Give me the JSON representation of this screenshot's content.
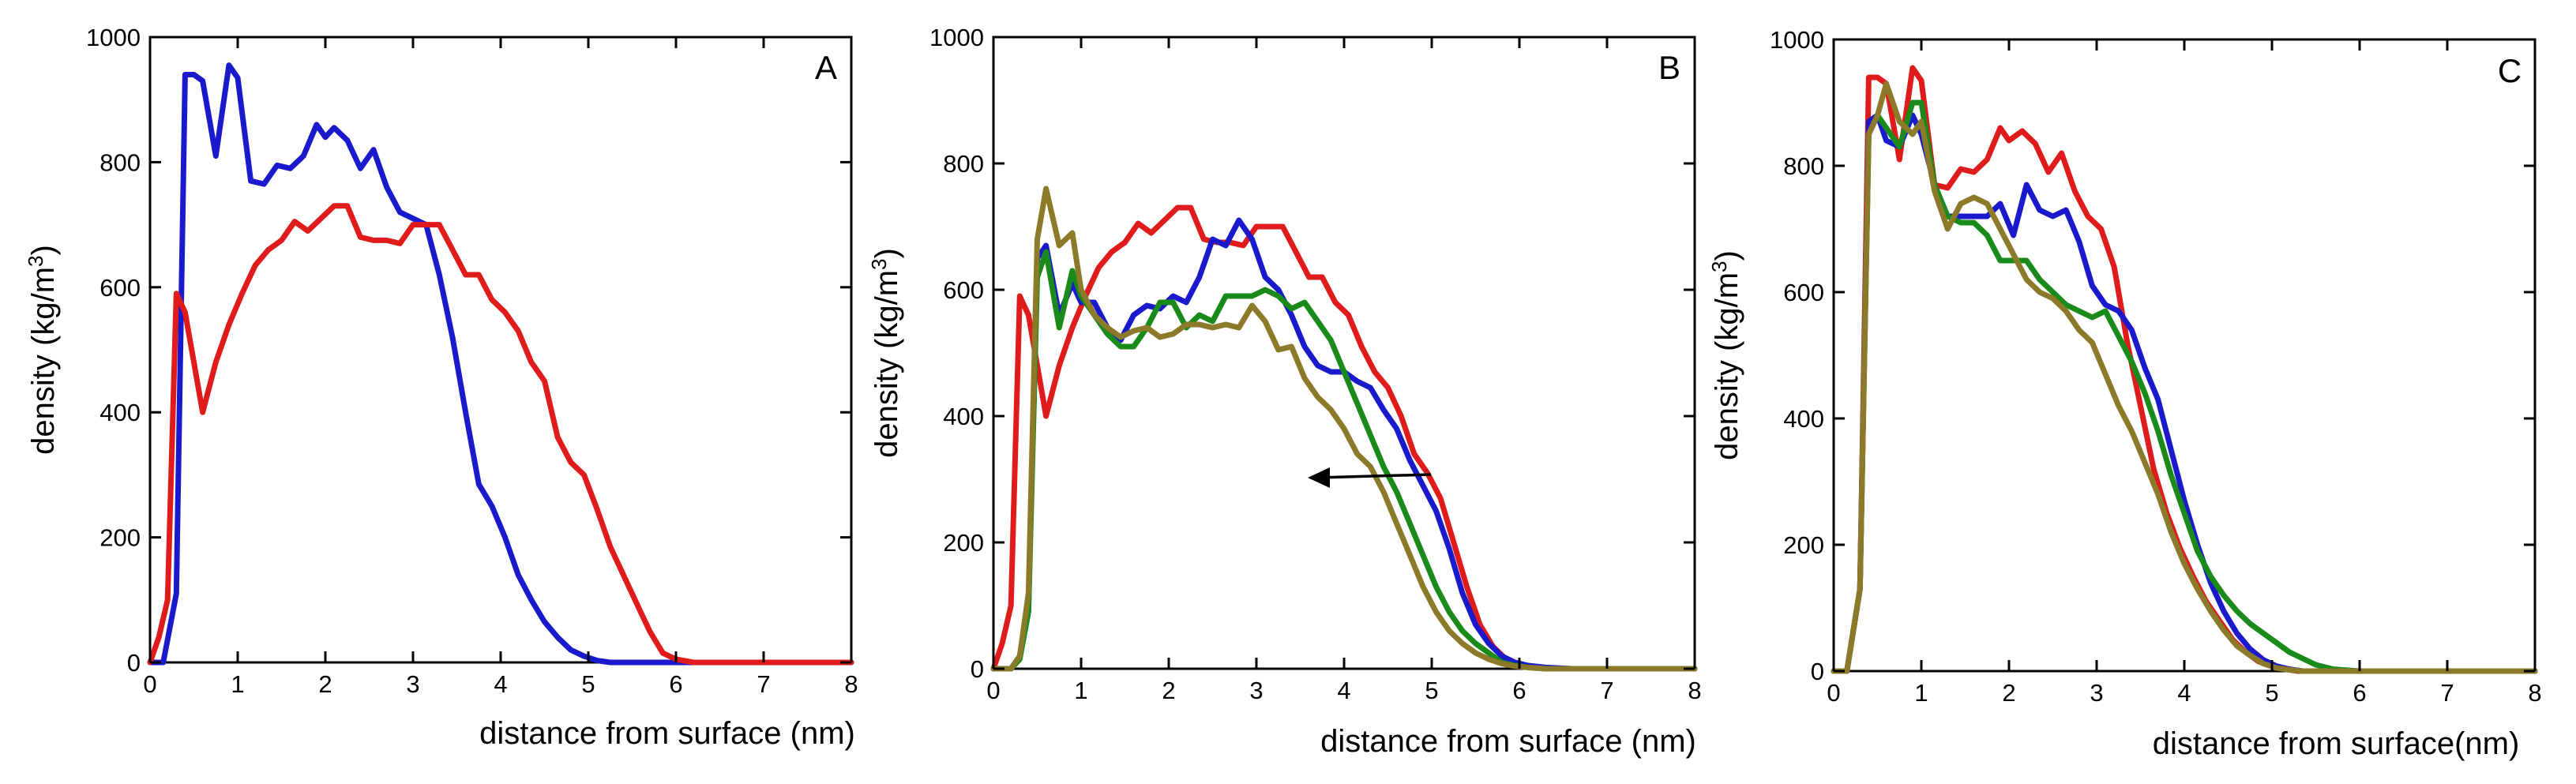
{
  "figure_title": "",
  "chart_data": [
    {
      "type": "line",
      "panel_label": "A",
      "title": "",
      "xlabel": "distance from surface (nm)",
      "ylabel_main": "density (kg/m",
      "ylabel_sup": "3",
      "ylabel_close": ")",
      "xlim": [
        0,
        8
      ],
      "ylim": [
        0,
        1000
      ],
      "xticks": [
        "0",
        "1",
        "2",
        "3",
        "4",
        "5",
        "6",
        "7",
        "8"
      ],
      "yticks": [
        "0",
        "200",
        "400",
        "600",
        "800",
        "1000"
      ],
      "grid": false,
      "series": [
        {
          "name": "blue",
          "color": "#1a1acc",
          "x": [
            0,
            0.15,
            0.3,
            0.4,
            0.5,
            0.6,
            0.75,
            0.9,
            1.0,
            1.15,
            1.3,
            1.45,
            1.6,
            1.75,
            1.9,
            2.0,
            2.1,
            2.25,
            2.4,
            2.55,
            2.7,
            2.85,
            3.0,
            3.15,
            3.3,
            3.45,
            3.6,
            3.75,
            3.9,
            4.05,
            4.2,
            4.35,
            4.5,
            4.65,
            4.8,
            4.95,
            5.1,
            5.25,
            5.4,
            5.6,
            6.0,
            7.0,
            8.0
          ],
          "y": [
            0,
            0,
            110,
            940,
            940,
            930,
            810,
            955,
            935,
            770,
            765,
            795,
            790,
            810,
            860,
            840,
            855,
            835,
            790,
            820,
            760,
            720,
            710,
            700,
            620,
            520,
            400,
            285,
            250,
            200,
            140,
            100,
            65,
            40,
            20,
            10,
            3,
            0,
            0,
            0,
            0,
            0,
            0
          ]
        },
        {
          "name": "red",
          "color": "#e01b1b",
          "x": [
            0,
            0.1,
            0.2,
            0.3,
            0.4,
            0.5,
            0.6,
            0.75,
            0.9,
            1.05,
            1.2,
            1.35,
            1.5,
            1.65,
            1.8,
            1.95,
            2.1,
            2.25,
            2.4,
            2.55,
            2.7,
            2.85,
            3.0,
            3.15,
            3.3,
            3.45,
            3.6,
            3.75,
            3.9,
            4.05,
            4.2,
            4.35,
            4.5,
            4.65,
            4.8,
            4.95,
            5.1,
            5.25,
            5.4,
            5.55,
            5.7,
            5.85,
            6.0,
            6.2,
            6.5,
            7.0,
            8.0
          ],
          "y": [
            0,
            40,
            100,
            590,
            560,
            480,
            400,
            480,
            540,
            590,
            635,
            660,
            675,
            705,
            690,
            710,
            730,
            730,
            680,
            675,
            675,
            670,
            700,
            700,
            700,
            660,
            620,
            620,
            580,
            560,
            530,
            480,
            450,
            360,
            320,
            300,
            245,
            185,
            140,
            95,
            50,
            15,
            5,
            0,
            0,
            0,
            0
          ]
        }
      ]
    },
    {
      "type": "line",
      "panel_label": "B",
      "title": "",
      "xlabel": "distance from surface (nm)",
      "ylabel_main": "density (kg/m",
      "ylabel_sup": "3",
      "ylabel_close": ")",
      "xlim": [
        0,
        8
      ],
      "ylim": [
        0,
        1000
      ],
      "xticks": [
        "0",
        "1",
        "2",
        "3",
        "4",
        "5",
        "6",
        "7",
        "8"
      ],
      "yticks": [
        "0",
        "200",
        "400",
        "600",
        "800",
        "1000"
      ],
      "grid": false,
      "annotation": "left-pointing arrow near (4.6, 300)",
      "series": [
        {
          "name": "red",
          "color": "#e01b1b",
          "x": [
            0,
            0.1,
            0.2,
            0.3,
            0.4,
            0.5,
            0.6,
            0.75,
            0.9,
            1.05,
            1.2,
            1.35,
            1.5,
            1.65,
            1.8,
            1.95,
            2.1,
            2.25,
            2.4,
            2.55,
            2.7,
            2.85,
            3.0,
            3.15,
            3.3,
            3.45,
            3.6,
            3.75,
            3.9,
            4.05,
            4.2,
            4.35,
            4.5,
            4.65,
            4.8,
            4.95,
            5.1,
            5.25,
            5.4,
            5.55,
            5.7,
            5.85,
            6.0,
            6.2,
            6.5,
            7.0,
            8.0
          ],
          "y": [
            0,
            40,
            100,
            590,
            560,
            480,
            400,
            480,
            540,
            590,
            635,
            660,
            675,
            705,
            690,
            710,
            730,
            730,
            680,
            675,
            675,
            670,
            700,
            700,
            700,
            660,
            620,
            620,
            580,
            560,
            510,
            470,
            445,
            400,
            340,
            310,
            270,
            200,
            130,
            70,
            35,
            15,
            5,
            2,
            0,
            0,
            0
          ]
        },
        {
          "name": "blue",
          "color": "#1a1acc",
          "x": [
            0,
            0.2,
            0.3,
            0.4,
            0.5,
            0.6,
            0.75,
            0.9,
            1.0,
            1.15,
            1.3,
            1.45,
            1.6,
            1.75,
            1.9,
            2.05,
            2.2,
            2.35,
            2.5,
            2.65,
            2.8,
            2.95,
            3.1,
            3.25,
            3.4,
            3.55,
            3.7,
            3.85,
            4.0,
            4.15,
            4.3,
            4.45,
            4.6,
            4.75,
            4.9,
            5.05,
            5.2,
            5.35,
            5.5,
            5.65,
            5.8,
            5.95,
            6.1,
            6.3,
            6.6,
            7.0,
            8.0
          ],
          "y": [
            0,
            0,
            20,
            100,
            650,
            670,
            560,
            610,
            580,
            580,
            540,
            520,
            560,
            575,
            570,
            590,
            580,
            620,
            680,
            670,
            710,
            680,
            620,
            600,
            560,
            510,
            480,
            470,
            470,
            455,
            445,
            410,
            380,
            330,
            290,
            250,
            190,
            120,
            70,
            40,
            20,
            10,
            5,
            2,
            0,
            0,
            0
          ]
        },
        {
          "name": "green",
          "color": "#1a8a1a",
          "x": [
            0,
            0.2,
            0.3,
            0.4,
            0.5,
            0.6,
            0.75,
            0.9,
            1.0,
            1.15,
            1.3,
            1.45,
            1.6,
            1.75,
            1.9,
            2.05,
            2.2,
            2.35,
            2.5,
            2.65,
            2.8,
            2.95,
            3.1,
            3.25,
            3.4,
            3.55,
            3.7,
            3.85,
            4.0,
            4.15,
            4.3,
            4.45,
            4.6,
            4.75,
            4.9,
            5.05,
            5.2,
            5.35,
            5.5,
            5.65,
            5.8,
            5.95,
            6.1,
            6.3,
            6.6,
            7.0,
            8.0
          ],
          "y": [
            0,
            0,
            15,
            90,
            620,
            660,
            540,
            630,
            590,
            560,
            530,
            510,
            510,
            540,
            580,
            580,
            540,
            560,
            550,
            590,
            590,
            590,
            600,
            590,
            570,
            580,
            550,
            520,
            470,
            420,
            370,
            320,
            280,
            230,
            180,
            130,
            90,
            60,
            40,
            25,
            10,
            5,
            2,
            0,
            0,
            0,
            0
          ]
        },
        {
          "name": "olive",
          "color": "#8a7a2a",
          "x": [
            0,
            0.2,
            0.3,
            0.4,
            0.5,
            0.6,
            0.75,
            0.9,
            1.0,
            1.15,
            1.3,
            1.45,
            1.6,
            1.75,
            1.9,
            2.05,
            2.2,
            2.35,
            2.5,
            2.65,
            2.8,
            2.95,
            3.1,
            3.25,
            3.4,
            3.55,
            3.7,
            3.85,
            4.0,
            4.15,
            4.3,
            4.45,
            4.6,
            4.75,
            4.9,
            5.05,
            5.2,
            5.35,
            5.5,
            5.65,
            5.8,
            5.95,
            6.1,
            6.3,
            6.6,
            7.0,
            8.0
          ],
          "y": [
            0,
            0,
            20,
            120,
            680,
            760,
            670,
            690,
            600,
            560,
            540,
            525,
            535,
            540,
            525,
            530,
            545,
            545,
            540,
            545,
            540,
            575,
            550,
            505,
            510,
            460,
            430,
            410,
            380,
            340,
            320,
            280,
            230,
            180,
            130,
            90,
            60,
            40,
            25,
            15,
            8,
            4,
            2,
            0,
            0,
            0,
            0
          ]
        }
      ]
    },
    {
      "type": "line",
      "panel_label": "C",
      "title": "",
      "xlabel": "distance from surface(nm)",
      "ylabel_main": "density (kg/m",
      "ylabel_sup": "3",
      "ylabel_close": ")",
      "xlim": [
        0,
        8
      ],
      "ylim": [
        0,
        1000
      ],
      "xticks": [
        "0",
        "1",
        "2",
        "3",
        "4",
        "5",
        "6",
        "7",
        "8"
      ],
      "yticks": [
        "0",
        "200",
        "400",
        "600",
        "800",
        "1000"
      ],
      "grid": false,
      "series": [
        {
          "name": "red",
          "color": "#e01b1b",
          "x": [
            0,
            0.15,
            0.3,
            0.4,
            0.5,
            0.6,
            0.75,
            0.9,
            1.0,
            1.15,
            1.3,
            1.45,
            1.6,
            1.75,
            1.9,
            2.0,
            2.15,
            2.3,
            2.45,
            2.6,
            2.75,
            2.9,
            3.05,
            3.2,
            3.35,
            3.5,
            3.65,
            3.8,
            3.95,
            4.1,
            4.25,
            4.4,
            4.55,
            4.7,
            4.85,
            5.0,
            5.15,
            5.3,
            5.5,
            6.0,
            7.0,
            8.0
          ],
          "y": [
            0,
            0,
            130,
            940,
            940,
            930,
            810,
            955,
            935,
            770,
            765,
            795,
            790,
            810,
            860,
            840,
            855,
            835,
            790,
            820,
            760,
            720,
            700,
            640,
            520,
            420,
            320,
            250,
            195,
            150,
            110,
            80,
            50,
            30,
            15,
            8,
            3,
            0,
            0,
            0,
            0,
            0
          ]
        },
        {
          "name": "blue",
          "color": "#1a1acc",
          "x": [
            0,
            0.15,
            0.3,
            0.4,
            0.5,
            0.6,
            0.75,
            0.9,
            1.0,
            1.15,
            1.3,
            1.45,
            1.6,
            1.75,
            1.9,
            2.05,
            2.2,
            2.35,
            2.5,
            2.65,
            2.8,
            2.95,
            3.1,
            3.25,
            3.4,
            3.55,
            3.7,
            3.85,
            4.0,
            4.15,
            4.3,
            4.45,
            4.6,
            4.75,
            4.9,
            5.05,
            5.2,
            5.35,
            5.6,
            6.0,
            7.0,
            8.0
          ],
          "y": [
            0,
            0,
            130,
            870,
            880,
            840,
            830,
            880,
            850,
            770,
            720,
            720,
            720,
            720,
            740,
            690,
            770,
            730,
            720,
            730,
            680,
            610,
            580,
            570,
            540,
            480,
            430,
            350,
            270,
            200,
            140,
            95,
            60,
            35,
            18,
            8,
            3,
            0,
            0,
            0,
            0,
            0
          ]
        },
        {
          "name": "green",
          "color": "#1a8a1a",
          "x": [
            0,
            0.15,
            0.3,
            0.4,
            0.5,
            0.6,
            0.75,
            0.9,
            1.0,
            1.15,
            1.3,
            1.45,
            1.6,
            1.75,
            1.9,
            2.05,
            2.2,
            2.35,
            2.5,
            2.65,
            2.8,
            2.95,
            3.1,
            3.25,
            3.4,
            3.55,
            3.7,
            3.85,
            4.0,
            4.15,
            4.3,
            4.45,
            4.6,
            4.75,
            4.9,
            5.05,
            5.2,
            5.35,
            5.5,
            5.7,
            6.0,
            7.0,
            8.0
          ],
          "y": [
            0,
            0,
            130,
            850,
            880,
            860,
            830,
            900,
            900,
            770,
            720,
            710,
            710,
            690,
            650,
            650,
            650,
            620,
            600,
            580,
            570,
            560,
            570,
            530,
            490,
            440,
            380,
            310,
            250,
            190,
            150,
            120,
            95,
            75,
            60,
            45,
            30,
            20,
            10,
            3,
            0,
            0,
            0
          ]
        },
        {
          "name": "olive",
          "color": "#8a7a2a",
          "x": [
            0,
            0.15,
            0.3,
            0.4,
            0.5,
            0.6,
            0.75,
            0.9,
            1.0,
            1.15,
            1.3,
            1.45,
            1.6,
            1.75,
            1.9,
            2.05,
            2.2,
            2.35,
            2.5,
            2.65,
            2.8,
            2.95,
            3.1,
            3.25,
            3.4,
            3.55,
            3.7,
            3.85,
            4.0,
            4.15,
            4.3,
            4.45,
            4.6,
            4.75,
            4.9,
            5.05,
            5.2,
            5.35,
            5.6,
            6.0,
            7.0,
            8.0
          ],
          "y": [
            0,
            0,
            130,
            850,
            880,
            930,
            870,
            850,
            870,
            760,
            700,
            740,
            750,
            740,
            700,
            660,
            620,
            600,
            590,
            570,
            540,
            520,
            470,
            420,
            380,
            330,
            280,
            220,
            170,
            130,
            95,
            65,
            40,
            25,
            12,
            5,
            2,
            0,
            0,
            0,
            0,
            0
          ]
        }
      ]
    }
  ]
}
